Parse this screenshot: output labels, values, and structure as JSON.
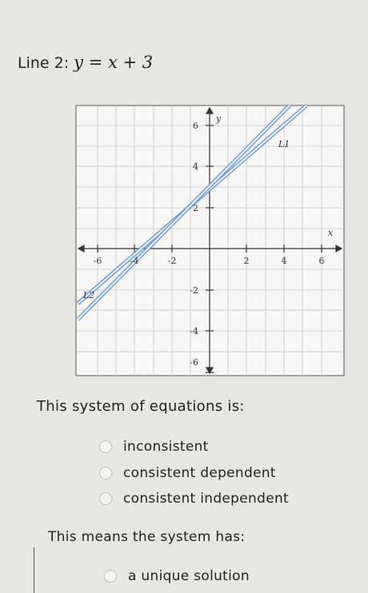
{
  "header": {
    "label": "Line 2:",
    "equation": "y = x + 3"
  },
  "graph": {
    "x_axis_label": "x",
    "y_axis_label": "y",
    "x_tick_labels": [
      -6,
      -4,
      -2,
      2,
      4,
      6
    ],
    "y_tick_labels": [
      6,
      4,
      2,
      -2,
      -4,
      -6
    ],
    "line_labels": [
      "L1",
      "L2"
    ]
  },
  "question1": {
    "prompt": "This system of equations is:",
    "options": [
      "inconsistent",
      "consistent dependent",
      "consistent independent"
    ]
  },
  "question2": {
    "prompt": "This means the system has:",
    "options": [
      "a unique solution"
    ]
  }
}
